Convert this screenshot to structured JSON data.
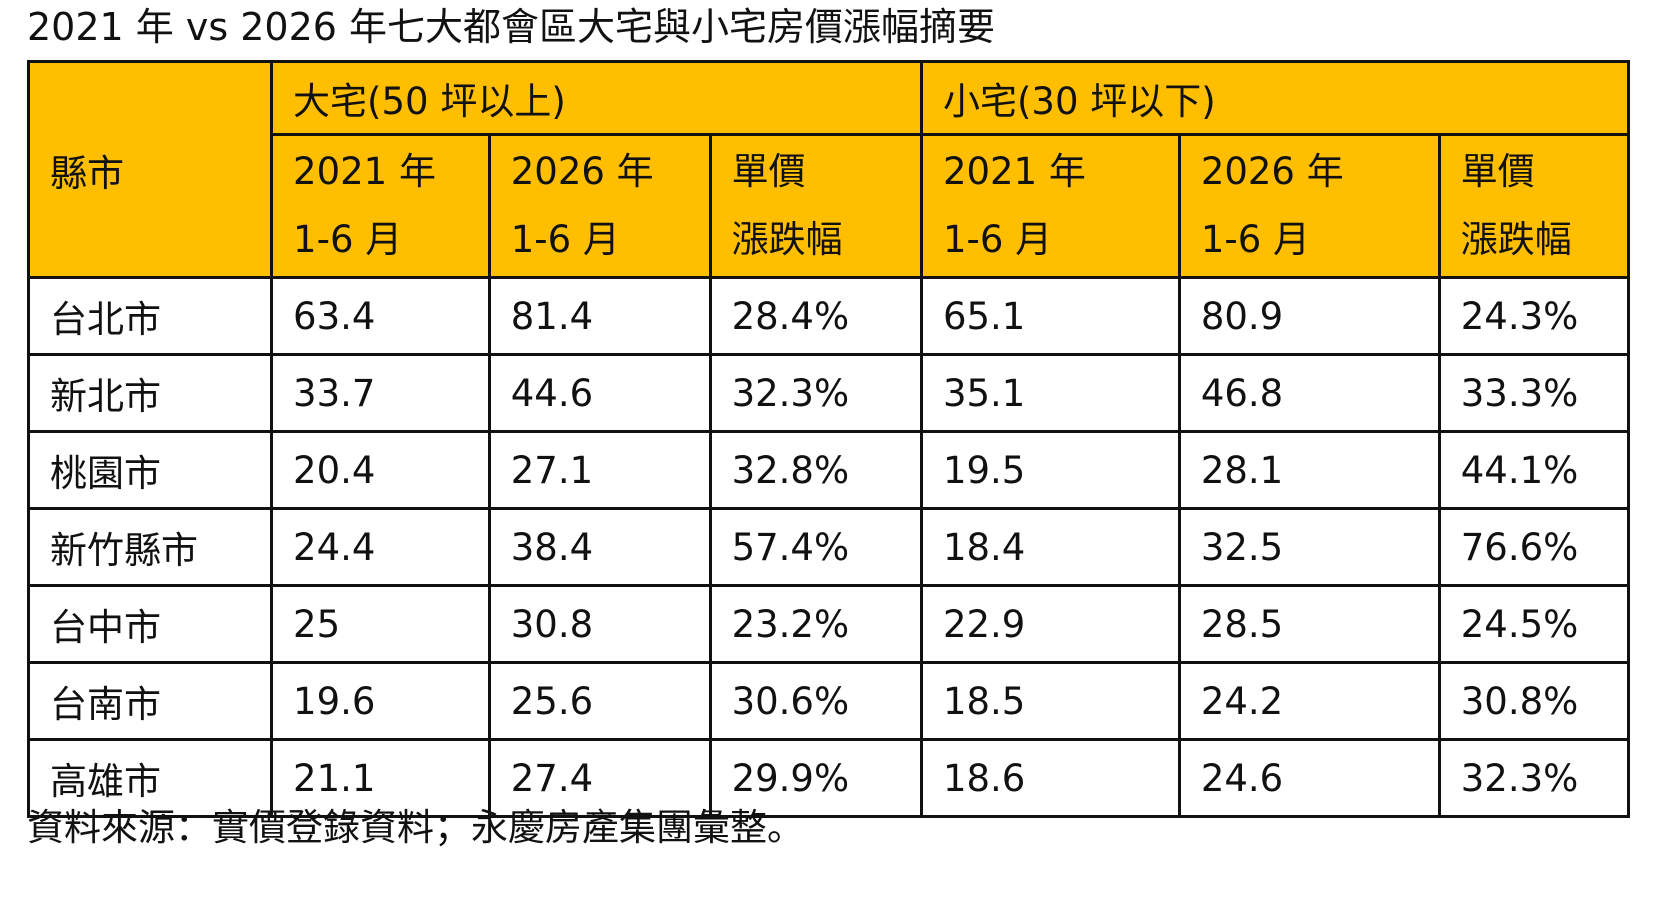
{
  "title": "2021 年 vs 2026 年七大都會區大宅與小宅房價漲幅摘要",
  "header": {
    "city": "縣市",
    "large_group": "大宅(50 坪以上)",
    "small_group": "小宅(30 坪以下)",
    "col_2021_line1": "2021 年",
    "col_2021_line2": "1-6 月",
    "col_2026_line1": "2026 年",
    "col_2026_line2": "1-6 月",
    "col_change_line1": "單價",
    "col_change_line2": "漲跌幅"
  },
  "colors": {
    "header_bg": "#FFBF00",
    "border": "#111111"
  },
  "rows": [
    {
      "city": "台北市",
      "large_2021": "63.4",
      "large_2026": "81.4",
      "large_change": "28.4%",
      "small_2021": "65.1",
      "small_2026": "80.9",
      "small_change": "24.3%"
    },
    {
      "city": "新北市",
      "large_2021": "33.7",
      "large_2026": "44.6",
      "large_change": "32.3%",
      "small_2021": "35.1",
      "small_2026": "46.8",
      "small_change": "33.3%"
    },
    {
      "city": "桃園市",
      "large_2021": "20.4",
      "large_2026": "27.1",
      "large_change": "32.8%",
      "small_2021": "19.5",
      "small_2026": "28.1",
      "small_change": "44.1%"
    },
    {
      "city": "新竹縣市",
      "large_2021": "24.4",
      "large_2026": "38.4",
      "large_change": "57.4%",
      "small_2021": "18.4",
      "small_2026": "32.5",
      "small_change": "76.6%"
    },
    {
      "city": "台中市",
      "large_2021": "25",
      "large_2026": "30.8",
      "large_change": "23.2%",
      "small_2021": "22.9",
      "small_2026": "28.5",
      "small_change": "24.5%"
    },
    {
      "city": "台南市",
      "large_2021": "19.6",
      "large_2026": "25.6",
      "large_change": "30.6%",
      "small_2021": "18.5",
      "small_2026": "24.2",
      "small_change": "30.8%"
    },
    {
      "city": "高雄市",
      "large_2021": "21.1",
      "large_2026": "27.4",
      "large_change": "29.9%",
      "small_2021": "18.6",
      "small_2026": "24.6",
      "small_change": "32.3%"
    }
  ],
  "source": "資料來源：實價登錄資料；永慶房產集團彙整。"
}
